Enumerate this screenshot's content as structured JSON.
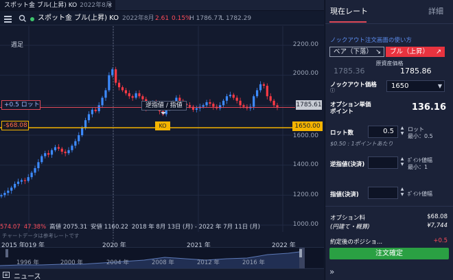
{
  "tab": {
    "title": "スポット金 ブル(上昇) KO",
    "subtitle": "2022年8月",
    "close": "×"
  },
  "header": {
    "title": "スポット金 ブル(上昇) KO",
    "period": "2022年8月",
    "change": "2.61",
    "change_pct": "0.15%",
    "high": "H 1786.77",
    "low": "L 1782.29"
  },
  "chart": {
    "period_label": "週足",
    "y_ticks": [
      "2200.00",
      "2000.00",
      "1800.00",
      "1600.00",
      "1400.00",
      "1200.00",
      "1000.00"
    ],
    "position_label": "+0.5 ロット",
    "position_value": "-$68.08",
    "current_price": "1785.61",
    "ko_price": "1650.00",
    "ko_label": "KO",
    "order_tooltip": "逆指値 / 指値",
    "stats": [
      "574.07",
      "47.38%",
      "高値 2075.31",
      "安値 1160.22",
      "2018 年 8月 13日 (月) - 2022 年 7月 11日 (月)"
    ],
    "note": "チャートデータは参考レートです",
    "x_labels": [
      "2015 年",
      "019 年",
      "2020 年",
      "2021 年",
      "2022 年"
    ],
    "colors": {
      "up": "#3d8bff",
      "down": "#ff3a45",
      "ko_line": "#f5b400",
      "position_line": "#e04a5a"
    }
  },
  "chart_data": {
    "type": "candlestick",
    "x_labels": [
      "2015 年",
      "019 年",
      "2020 年",
      "2021 年",
      "2022 年"
    ],
    "ylim": [
      1000,
      2200
    ],
    "y_ticks": [
      2200,
      2000,
      1800,
      1600,
      1400,
      1200,
      1000
    ],
    "series": [
      {
        "name": "close",
        "values": [
          1200,
          1215,
          1230,
          1250,
          1275,
          1290,
          1300,
          1295,
          1320,
          1350,
          1380,
          1420,
          1460,
          1480,
          1470,
          1500,
          1520,
          1510,
          1490,
          1480,
          1500,
          1530,
          1560,
          1600,
          1650,
          1700,
          1740,
          1770,
          1760,
          1800,
          1850,
          1900,
          2000,
          2040,
          1950,
          1920,
          1900,
          1880,
          1860,
          1850,
          1880,
          1860,
          1840,
          1780,
          1800,
          1820,
          1790,
          1760,
          1740,
          1780,
          1800,
          1820,
          1850,
          1830,
          1810,
          1800,
          1790,
          1770,
          1780,
          1790,
          1800,
          1820,
          1810,
          1790,
          1780,
          1800,
          1830,
          1860,
          1870,
          1850,
          1830,
          1800,
          1790,
          1780,
          1790,
          1860,
          1900,
          1940,
          1930,
          1860,
          1830,
          1800,
          1785
        ]
      }
    ],
    "levels": {
      "current": 1785.61,
      "knock_out": 1650.0
    }
  },
  "navigator": {
    "labels": [
      "1996 年",
      "2000 年",
      "2004 年",
      "2008 年",
      "2012 年",
      "2016 年"
    ]
  },
  "news": {
    "label": "ニュース"
  },
  "panel": {
    "tab_rate": "現在レート",
    "tab_detail": "詳細",
    "help_link": "ノックアウト注文画面の使い方",
    "bear_label": "ベア（下落）",
    "bear_arrow": "↘",
    "bull_label": "ブル（上昇）",
    "bull_arrow": "↗",
    "asset_label": "原資産価格",
    "bid": "1785.36",
    "ask": "1785.86",
    "ko_label": "ノックアウト価格",
    "ko_value": "1650",
    "option_price_label": "オプション単価",
    "option_price_label2": "ポイント",
    "option_price": "136.16",
    "lots_label": "ロット数",
    "lots_value": "0.5",
    "lots_unit": "ロット",
    "lots_min": "最小：0.5",
    "lots_hint": "$0.50 : 1ポイントあたり",
    "stop_label": "逆指値(決済)",
    "stop_unit": "ﾎﾟｲﾝﾄ値幅",
    "stop_min": "最小：1",
    "limit_label": "指値(決済)",
    "limit_unit": "ﾎﾟｲﾝﾄ値幅",
    "fee_label": "オプション料",
    "fee_value": "$68.08",
    "fee_jpy_label": "(円建て・概算)",
    "fee_jpy_value": "¥7,744",
    "after_label": "約定後のポジショ...",
    "after_value": "+0.5",
    "confirm": "注文確定",
    "expand": "»"
  }
}
